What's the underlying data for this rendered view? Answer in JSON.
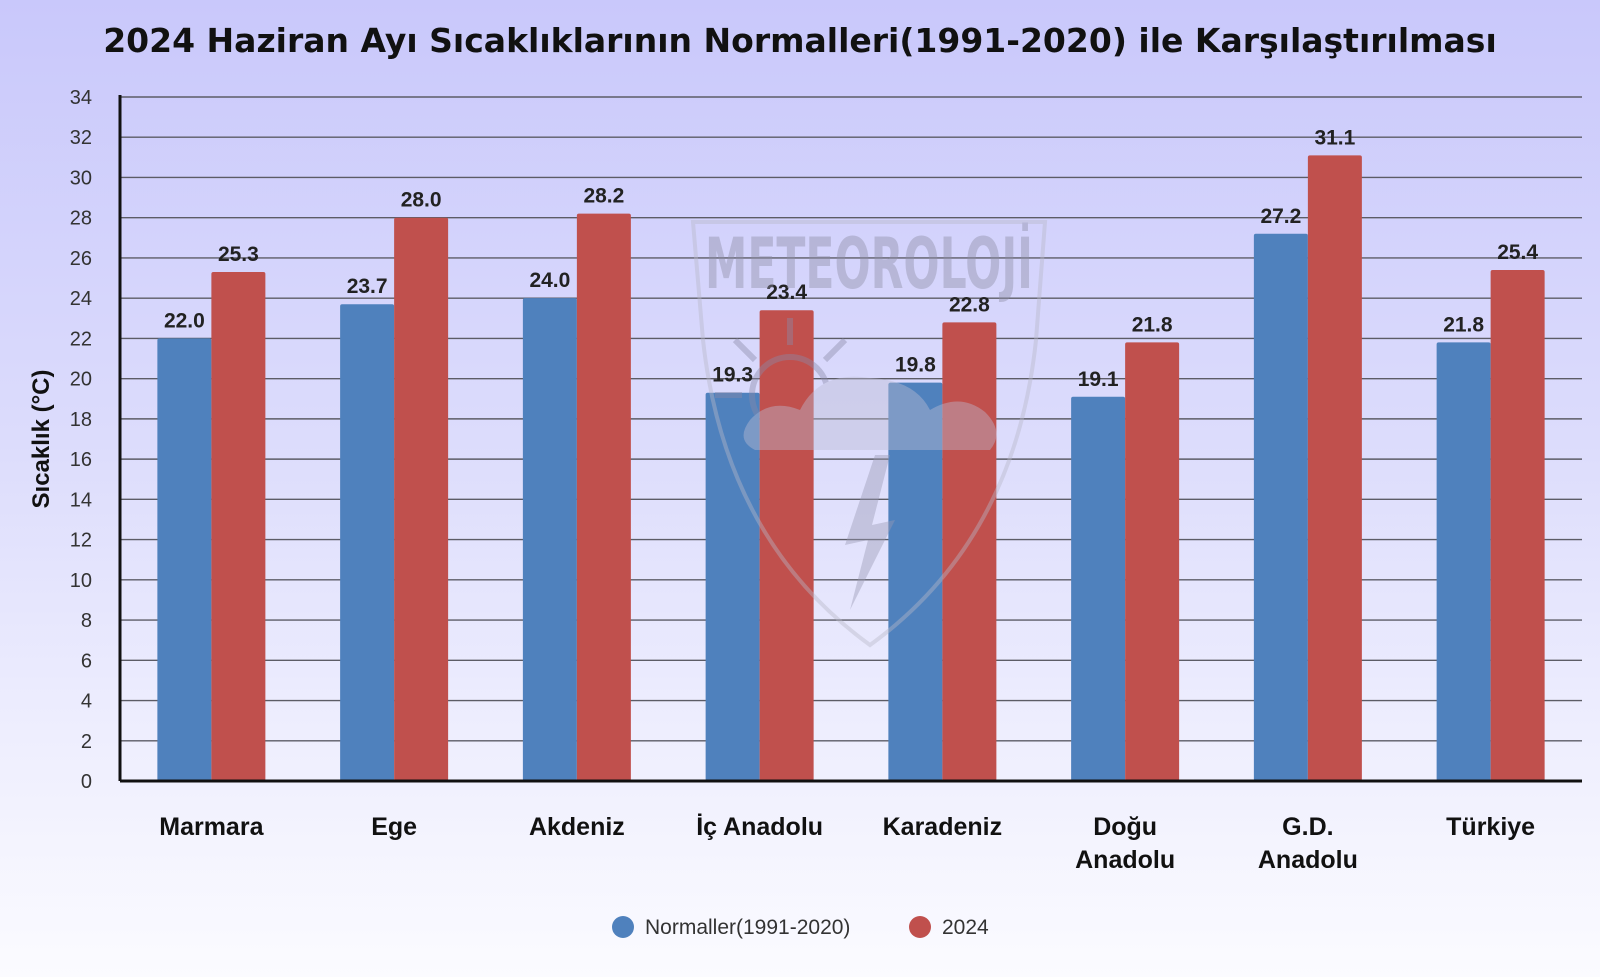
{
  "chart_data": {
    "type": "bar",
    "title": "2024 Haziran Ayı Sıcaklıklarının Normalleri(1991-2020) ile Karşılaştırılması",
    "ylabel": "Sıcaklık (°C)",
    "xlabel": "",
    "ylim": [
      0,
      34
    ],
    "yticks": [
      0,
      2,
      4,
      6,
      8,
      10,
      12,
      14,
      16,
      18,
      20,
      22,
      24,
      26,
      28,
      30,
      32,
      34
    ],
    "categories": [
      [
        "Marmara"
      ],
      [
        "Ege"
      ],
      [
        "Akdeniz"
      ],
      [
        "İç Anadolu"
      ],
      [
        "Karadeniz"
      ],
      [
        "Doğu",
        "Anadolu"
      ],
      [
        "G.D.",
        "Anadolu"
      ],
      [
        "Türkiye"
      ]
    ],
    "series": [
      {
        "name": "Normaller(1991-2020)",
        "color": "#4f81bd",
        "values": [
          22.0,
          23.7,
          24.0,
          19.3,
          19.8,
          19.1,
          27.2,
          21.8
        ]
      },
      {
        "name": "2024",
        "color": "#c0504d",
        "values": [
          25.3,
          28.0,
          28.2,
          23.4,
          22.8,
          21.8,
          31.1,
          25.4
        ]
      }
    ],
    "grid": true,
    "legend_position": "bottom-center",
    "value_labels": true
  },
  "watermark": {
    "text": "METEOROLOJİ"
  }
}
